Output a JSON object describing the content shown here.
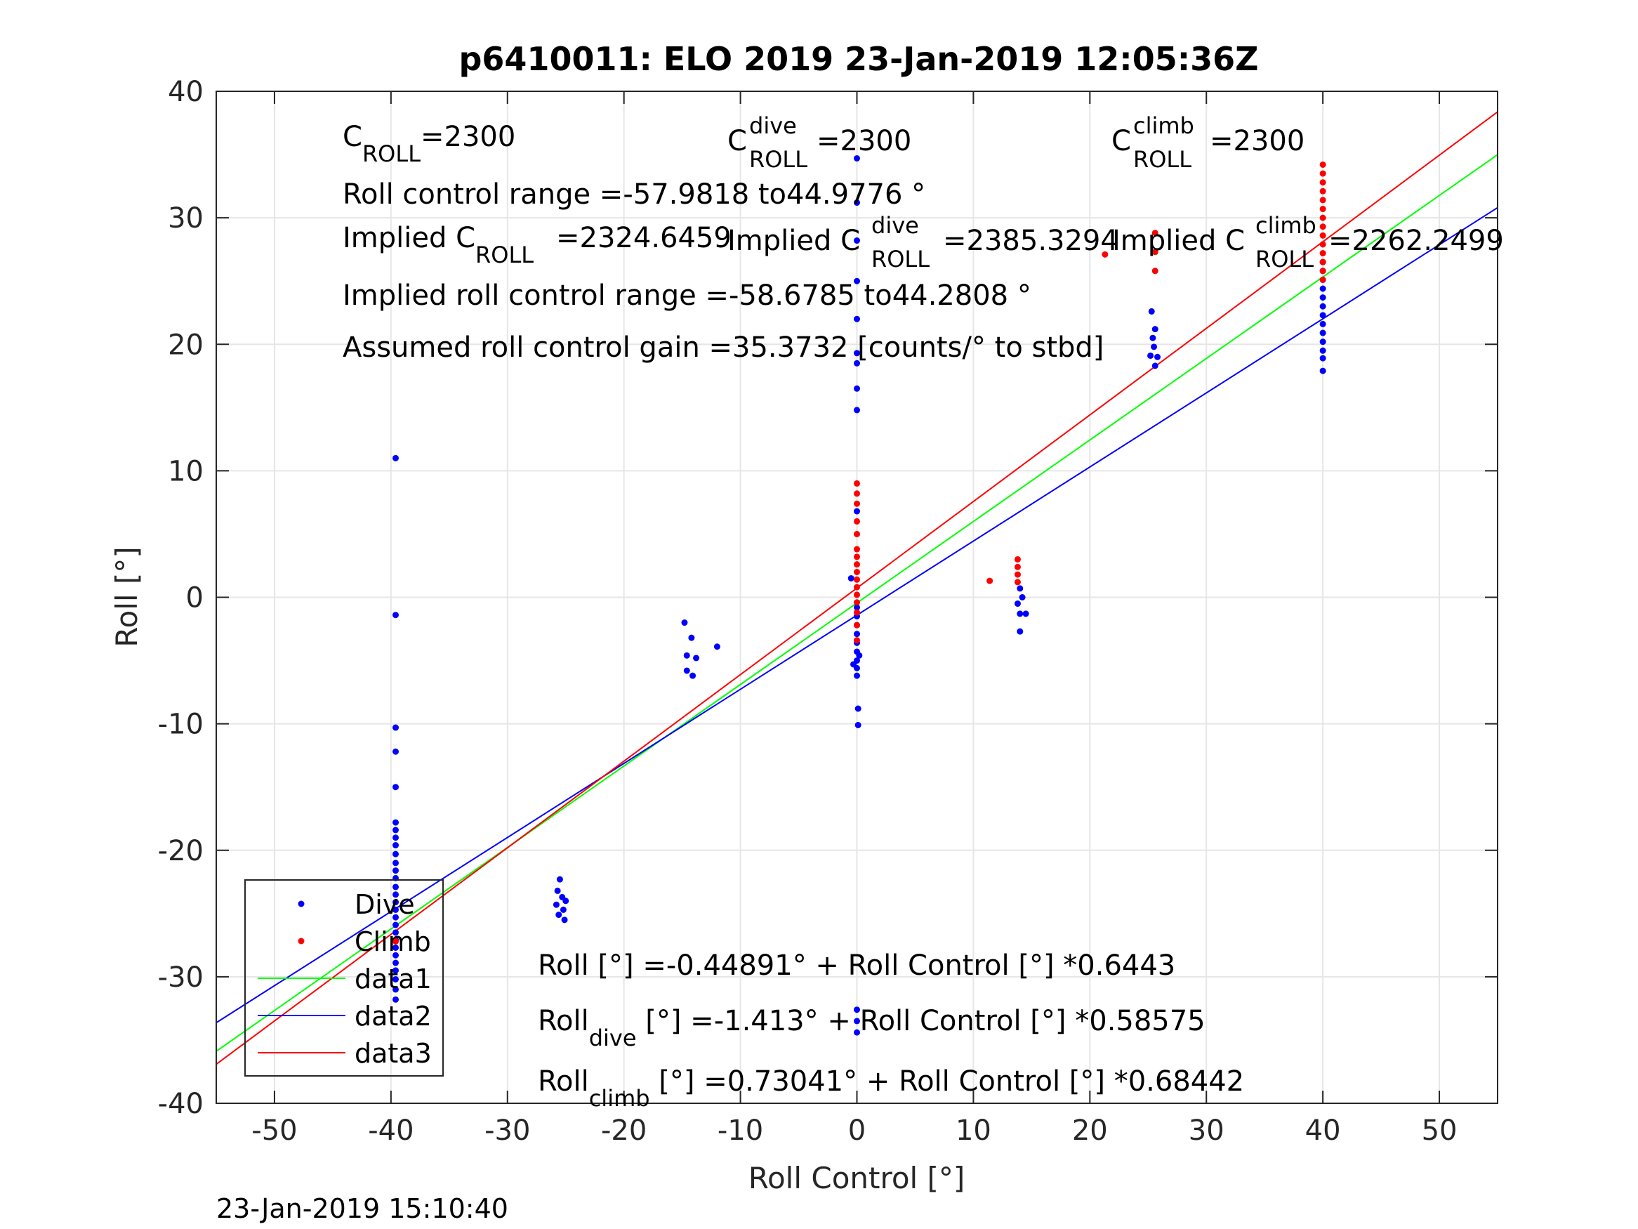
{
  "chart_data": {
    "type": "scatter",
    "title": "p6410011: ELO 2019 23-Jan-2019 12:05:36Z",
    "xlabel": "Roll Control [°]",
    "ylabel": "Roll [°]",
    "xlim": [
      -55,
      55
    ],
    "ylim": [
      -40,
      40
    ],
    "xticks": [
      -50,
      -40,
      -30,
      -20,
      -10,
      0,
      10,
      20,
      30,
      40,
      50
    ],
    "yticks": [
      -40,
      -30,
      -20,
      -10,
      0,
      10,
      20,
      30,
      40
    ],
    "grid": true,
    "legend_position": "bottom-left",
    "timestamp": "23-Jan-2019 15:10:40",
    "colors": {
      "dive": "#0000ff",
      "climb": "#ff0000",
      "data1": "#00ff00",
      "data2": "#0000ff",
      "data3": "#ff0000",
      "grid": "#e6e6e6"
    },
    "legend": [
      {
        "key": "dive",
        "label": "Dive",
        "kind": "marker"
      },
      {
        "key": "climb",
        "label": "Climb",
        "kind": "marker"
      },
      {
        "key": "data1",
        "label": "data1",
        "kind": "line"
      },
      {
        "key": "data2",
        "label": "data2",
        "kind": "line"
      },
      {
        "key": "data3",
        "label": "data3",
        "kind": "line"
      }
    ],
    "lines": [
      {
        "key": "data1",
        "name": "data1",
        "intercept": -0.44891,
        "slope": 0.6443
      },
      {
        "key": "data2",
        "name": "data2",
        "intercept": -1.413,
        "slope": 0.58575
      },
      {
        "key": "data3",
        "name": "data3",
        "intercept": 0.73041,
        "slope": 0.68442
      }
    ],
    "series": [
      {
        "key": "dive",
        "name": "Dive",
        "points": [
          [
            -39.6,
            11
          ],
          [
            -39.6,
            -1.4
          ],
          [
            -39.6,
            -10.3
          ],
          [
            -39.6,
            -12.2
          ],
          [
            -39.6,
            -15
          ],
          [
            -39.6,
            -17.8
          ],
          [
            -39.6,
            -18.4
          ],
          [
            -39.6,
            -19
          ],
          [
            -39.6,
            -19.6
          ],
          [
            -39.6,
            -20.3
          ],
          [
            -39.6,
            -21
          ],
          [
            -39.6,
            -21.6
          ],
          [
            -39.6,
            -22.2
          ],
          [
            -39.6,
            -22.9
          ],
          [
            -39.6,
            -23.5
          ],
          [
            -39.6,
            -24.1
          ],
          [
            -39.6,
            -24.7
          ],
          [
            -39.6,
            -25.3
          ],
          [
            -39.6,
            -25.9
          ],
          [
            -39.6,
            -26.5
          ],
          [
            -39.6,
            -27.1
          ],
          [
            -39.6,
            -27.7
          ],
          [
            -39.6,
            -28.3
          ],
          [
            -39.6,
            -28.9
          ],
          [
            -39.6,
            -29.5
          ],
          [
            -39.6,
            -30.2
          ],
          [
            -39.6,
            -31
          ],
          [
            -39.6,
            -31.8
          ],
          [
            -25.5,
            -22.3
          ],
          [
            -25.7,
            -23.2
          ],
          [
            -25.3,
            -23.7
          ],
          [
            -25,
            -24
          ],
          [
            -25.8,
            -24.3
          ],
          [
            -25.2,
            -24.7
          ],
          [
            -25.6,
            -25.1
          ],
          [
            -25.1,
            -25.5
          ],
          [
            -14.8,
            -2
          ],
          [
            -14.2,
            -3.2
          ],
          [
            -14.6,
            -4.6
          ],
          [
            -13.8,
            -4.8
          ],
          [
            -12,
            -3.9
          ],
          [
            -14.6,
            -5.8
          ],
          [
            -14.1,
            -6.2
          ],
          [
            0,
            34.7
          ],
          [
            0,
            31.2
          ],
          [
            0,
            28.2
          ],
          [
            0,
            25
          ],
          [
            0,
            22
          ],
          [
            0,
            19.3
          ],
          [
            0,
            18.5
          ],
          [
            0,
            16.5
          ],
          [
            0,
            14.8
          ],
          [
            0,
            6.8
          ],
          [
            -0.5,
            1.5
          ],
          [
            0,
            -0.8
          ],
          [
            0,
            -1.5
          ],
          [
            0,
            -2.2
          ],
          [
            0,
            -2.9
          ],
          [
            0,
            -3.6
          ],
          [
            0,
            -4.3
          ],
          [
            0,
            -5
          ],
          [
            0,
            -5.6
          ],
          [
            0,
            -6.2
          ],
          [
            0.2,
            -4.6
          ],
          [
            -0.3,
            -5.3
          ],
          [
            0.1,
            -8.8
          ],
          [
            0.1,
            -10.1
          ],
          [
            0,
            -32.6
          ],
          [
            0,
            -33.5
          ],
          [
            0,
            -34.4
          ],
          [
            14,
            0.7
          ],
          [
            14.2,
            0
          ],
          [
            13.8,
            -0.5
          ],
          [
            14,
            -1.3
          ],
          [
            14.5,
            -1.3
          ],
          [
            14,
            -2.7
          ],
          [
            25.3,
            22.6
          ],
          [
            25.6,
            21.2
          ],
          [
            25.4,
            20.5
          ],
          [
            25.5,
            19.8
          ],
          [
            25.2,
            19.1
          ],
          [
            25.8,
            19
          ],
          [
            25.6,
            18.3
          ],
          [
            40,
            26.5
          ],
          [
            40,
            25.8
          ],
          [
            40,
            25.1
          ],
          [
            40,
            24.4
          ],
          [
            40,
            23.7
          ],
          [
            40,
            23
          ],
          [
            40,
            22.3
          ],
          [
            40,
            21.6
          ],
          [
            40,
            20.9
          ],
          [
            40,
            20.2
          ],
          [
            40,
            19.5
          ],
          [
            40,
            18.9
          ],
          [
            40,
            17.9
          ]
        ]
      },
      {
        "key": "climb",
        "name": "Climb",
        "points": [
          [
            -39.6,
            -27.2
          ],
          [
            0,
            9
          ],
          [
            0,
            8.2
          ],
          [
            0,
            7.4
          ],
          [
            0,
            6
          ],
          [
            0,
            5
          ],
          [
            0,
            3.8
          ],
          [
            0,
            3.2
          ],
          [
            0,
            2.6
          ],
          [
            0,
            2
          ],
          [
            0,
            1.4
          ],
          [
            0,
            0.8
          ],
          [
            0,
            0.2
          ],
          [
            0,
            -0.4
          ],
          [
            0,
            -1.2
          ],
          [
            0,
            -2.2
          ],
          [
            0,
            -3.4
          ],
          [
            11.4,
            1.3
          ],
          [
            13.8,
            3
          ],
          [
            13.8,
            2.4
          ],
          [
            13.8,
            1.8
          ],
          [
            13.8,
            1.2
          ],
          [
            21.3,
            27.1
          ],
          [
            25.6,
            28.8
          ],
          [
            25.6,
            27.3
          ],
          [
            25.6,
            25.8
          ],
          [
            40,
            34.2
          ],
          [
            40,
            33.5
          ],
          [
            40,
            32.8
          ],
          [
            40,
            32.1
          ],
          [
            40,
            31.4
          ],
          [
            40,
            30.7
          ],
          [
            40,
            30
          ],
          [
            40,
            29.3
          ],
          [
            40,
            28.6
          ],
          [
            40,
            27.9
          ],
          [
            40,
            27.2
          ],
          [
            40,
            26.5
          ],
          [
            40,
            25.8
          ],
          [
            40,
            25.1
          ]
        ]
      }
    ],
    "annotations": {
      "c_roll": {
        "main": "C",
        "sub": "ROLL",
        "value": "=2300"
      },
      "c_roll_dive": {
        "main": "C",
        "sup": "dive",
        "sub": "ROLL",
        "value": "=2300"
      },
      "c_roll_climb": {
        "main": "C",
        "sup": "climb",
        "sub": "ROLL",
        "value": "=2300"
      },
      "roll_control_range": "Roll control range =-57.9818 to44.9776 °",
      "implied_c_roll": {
        "main": "Implied C",
        "sub": "ROLL",
        "value": "=2324.6459"
      },
      "implied_c_roll_dive": {
        "main": "Implied C",
        "sup": "dive",
        "sub": "ROLL",
        "value": "=2385.3294"
      },
      "implied_c_roll_climb": {
        "main": "Implied C",
        "sup": "climb",
        "sub": "ROLL",
        "value": "=2262.2499"
      },
      "implied_roll_control_range": "Implied roll control range =-58.6785 to44.2808 °",
      "assumed_gain": "Assumed roll control gain =35.3732 [counts/° to stbd]",
      "fit_all": {
        "main": "Roll [°] =-0.44891° + Roll Control [°] *0.6443"
      },
      "fit_dive": {
        "main": "Roll",
        "sub": "dive",
        "rest": " [°] =-1.413° + Roll Control [°] *0.58575"
      },
      "fit_climb": {
        "main": "Roll",
        "sub": "climb",
        "rest": " [°] =0.73041° + Roll Control [°] *0.68442"
      }
    }
  }
}
